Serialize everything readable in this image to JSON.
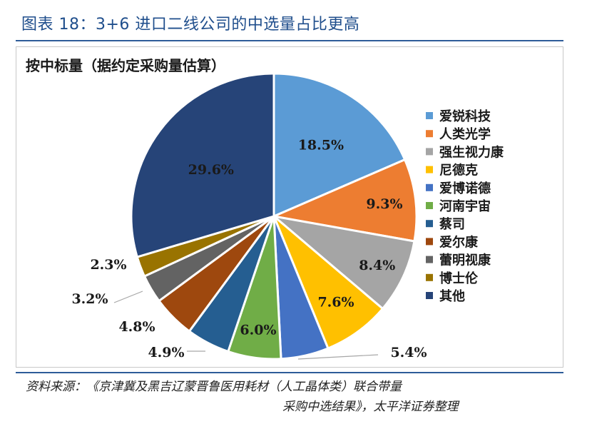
{
  "figure_title": "图表 18：3+6 进口二线公司的中选量占比更高",
  "source_line1": "资料来源：《京津冀及黑吉辽蒙晋鲁医用耗材（人工晶体类）联合带量",
  "source_line2": "采购中选结果》，太平洋证券整理",
  "chart_data": {
    "type": "pie",
    "title": "按中标量（据约定采购量估算）",
    "legend_position": "right",
    "start_angle_deg": 0,
    "direction": "clockwise",
    "slices": [
      {
        "name": "爱锐科技",
        "value": 18.5,
        "label": "18.5%",
        "color": "#5b9bd5",
        "label_color": "#1a1a1a"
      },
      {
        "name": "人类光学",
        "value": 9.3,
        "label": "9.3%",
        "color": "#ed7d31",
        "label_color": "#1a1a1a"
      },
      {
        "name": "强生视力康",
        "value": 8.4,
        "label": "8.4%",
        "color": "#a5a5a5",
        "label_color": "#1a1a1a"
      },
      {
        "name": "尼德克",
        "value": 7.6,
        "label": "7.6%",
        "color": "#ffc000",
        "label_color": "#1a1a1a"
      },
      {
        "name": "爱博诺德",
        "value": 5.4,
        "label": "5.4%",
        "color": "#4472c4",
        "label_color": "#1a1a1a"
      },
      {
        "name": "河南宇宙",
        "value": 6.0,
        "label": "6.0%",
        "color": "#70ad47",
        "label_color": "#1a1a1a"
      },
      {
        "name": "蔡司",
        "value": 4.9,
        "label": "4.9%",
        "color": "#255e91",
        "label_color": "#1a1a1a"
      },
      {
        "name": "爱尔康",
        "value": 4.8,
        "label": "4.8%",
        "color": "#9e480e",
        "label_color": "#1a1a1a"
      },
      {
        "name": "蕾明视康",
        "value": 3.2,
        "label": "3.2%",
        "color": "#636363",
        "label_color": "#1a1a1a"
      },
      {
        "name": "博士伦",
        "value": 2.3,
        "label": "2.3%",
        "color": "#997300",
        "label_color": "#1a1a1a"
      },
      {
        "name": "其他",
        "value": 29.6,
        "label": "29.6%",
        "color": "#264478",
        "label_color": "#1a1a1a"
      }
    ]
  }
}
